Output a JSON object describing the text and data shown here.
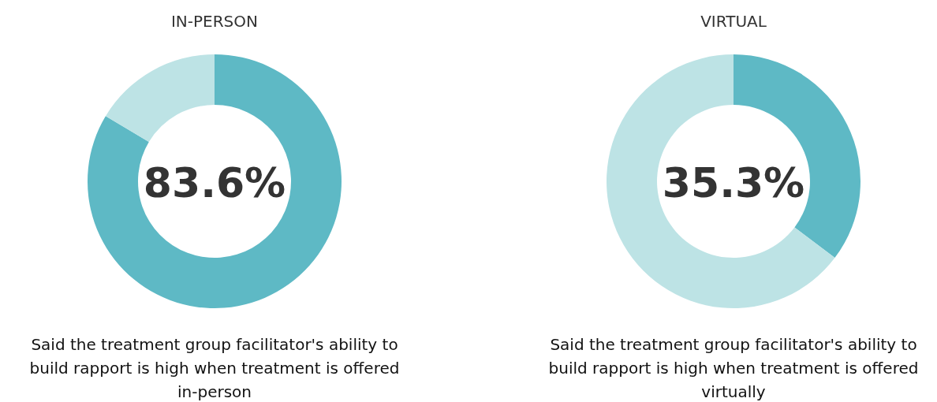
{
  "chart_data": [
    {
      "type": "donut",
      "title": "IN-PERSON",
      "categories": [
        null,
        null
      ],
      "values": [
        83.6,
        16.4
      ],
      "colors": [
        "#5eb9c5",
        "#bde3e5"
      ],
      "annotations": [
        "83.6%",
        "Said the treatment group facilitator's ability to build rapport is high when treatment is offered in-person"
      ]
    },
    {
      "type": "donut",
      "title": "VIRTUAL",
      "categories": [
        null,
        null
      ],
      "values": [
        35.3,
        64.7
      ],
      "colors": [
        "#5eb9c5",
        "#bde3e5"
      ],
      "annotations": [
        "35.3%",
        "Said the treatment group facilitator's ability to build rapport is high when treatment is offered virtually"
      ]
    }
  ]
}
